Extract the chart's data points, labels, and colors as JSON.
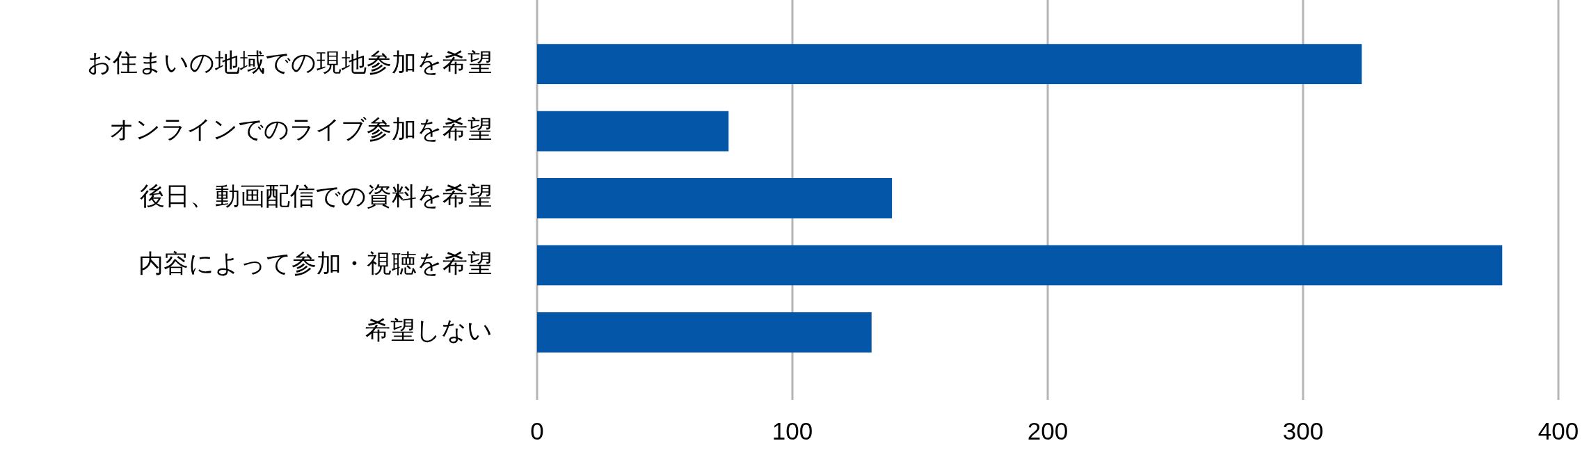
{
  "chart_data": {
    "type": "bar",
    "orientation": "horizontal",
    "categories": [
      "お住まいの地域での現地参加を希望",
      "オンラインでのライブ参加を希望",
      "後日、動画配信での資料を希望",
      "内容によって参加・視聴を希望",
      "希望しない"
    ],
    "values": [
      323,
      75,
      139,
      378,
      131
    ],
    "color": "#0356a8",
    "xlim": [
      0,
      400
    ],
    "xticks": [
      0,
      100,
      200,
      300,
      400
    ],
    "grid": "x"
  }
}
